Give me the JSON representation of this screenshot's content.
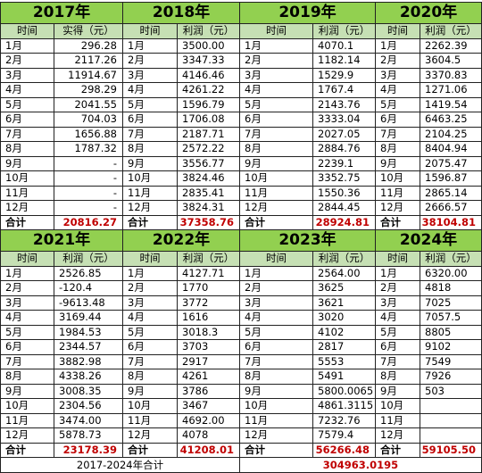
{
  "blocks": [
    {
      "year": "2017年",
      "headers": [
        "时间",
        "实得（元）"
      ],
      "months": [
        "1月",
        "2月",
        "3月",
        "4月",
        "5月",
        "6月",
        "7月",
        "8月",
        "9月",
        "10月",
        "11月",
        "12月"
      ],
      "values": [
        "296.28",
        "2117.26",
        "11914.67",
        "298.29",
        "2041.55",
        "704.03",
        "1656.88",
        "1787.32",
        "-",
        "-",
        "-",
        "-"
      ],
      "total_label": "合计",
      "total": "20816.27"
    },
    {
      "year": "2018年",
      "headers": [
        "时间",
        "利润（元）"
      ],
      "months": [
        "1月",
        "2月",
        "3月",
        "4月",
        "5月",
        "6月",
        "7月",
        "8月",
        "9月",
        "10月",
        "11月",
        "12月"
      ],
      "values": [
        "3500.00",
        "3347.33",
        "4146.46",
        "4261.22",
        "1596.79",
        "1706.08",
        "2187.71",
        "2572.22",
        "3556.77",
        "3824.46",
        "2835.41",
        "3824.31"
      ],
      "total_label": "合计",
      "total": "37358.76"
    },
    {
      "year": "2019年",
      "headers": [
        "时间",
        "利润（元）"
      ],
      "months": [
        "1月",
        "2月",
        "3月",
        "4月",
        "5月",
        "6月",
        "7月",
        "8月",
        "9月",
        "10月",
        "11月",
        "12月"
      ],
      "values": [
        "4070.1",
        "1182.14",
        "1529.9",
        "1767.4",
        "2143.76",
        "3333.04",
        "2027.05",
        "2884.76",
        "2239.1",
        "3352.75",
        "1550.36",
        "2844.45"
      ],
      "total_label": "合计",
      "total": "28924.81"
    },
    {
      "year": "2020年",
      "headers": [
        "时间",
        "利润（元）"
      ],
      "months": [
        "1月",
        "2月",
        "3月",
        "4月",
        "5月",
        "6月",
        "7月",
        "8月",
        "9月",
        "10月",
        "11月",
        "12月"
      ],
      "values": [
        "2262.39",
        "3604.5",
        "3370.83",
        "1271.06",
        "1419.54",
        "6463.25",
        "2104.25",
        "8404.94",
        "2075.47",
        "1596.87",
        "2865.14",
        "2666.57"
      ],
      "total_label": "合计",
      "total": "38104.81"
    },
    {
      "year": "2021年",
      "headers": [
        "时间",
        "利润（元）"
      ],
      "months": [
        "1月",
        "2月",
        "3月",
        "4月",
        "5月",
        "6月",
        "7月",
        "8月",
        "9月",
        "10月",
        "11月",
        "12月"
      ],
      "values": [
        "2526.85",
        "-120.4",
        "-9613.48",
        "3169.44",
        "1984.53",
        "2344.57",
        "3882.98",
        "4338.26",
        "3008.35",
        "2304.56",
        "3474.00",
        "5878.73"
      ],
      "total_label": "合计",
      "total": "23178.39"
    },
    {
      "year": "2022年",
      "headers": [
        "时间",
        "利润（元）"
      ],
      "months": [
        "1月",
        "2月",
        "3月",
        "4月",
        "5月",
        "6月",
        "7月",
        "8月",
        "9月",
        "10月",
        "11月",
        "12月"
      ],
      "values": [
        "4127.71",
        "1770",
        "3772",
        "1616",
        "3018.3",
        "3703",
        "2917",
        "4261",
        "3786",
        "3467",
        "4692.00",
        "4078"
      ],
      "total_label": "合计",
      "total": "41208.01"
    },
    {
      "year": "2023年",
      "headers": [
        "时间",
        "利润（元）"
      ],
      "months": [
        "1月",
        "2月",
        "3月",
        "4月",
        "5月",
        "6月",
        "7月",
        "8月",
        "9月",
        "10月",
        "11月",
        "12月"
      ],
      "values": [
        "2564.00",
        "3625",
        "3621",
        "3020",
        "4102",
        "2817",
        "5553",
        "5491",
        "5800.0065",
        "4861.3115",
        "7232.76",
        "7579.4"
      ],
      "total_label": "合计",
      "total": "56266.48"
    },
    {
      "year": "2024年",
      "headers": [
        "时间",
        "利润（元）"
      ],
      "months": [
        "1月",
        "2月",
        "3月",
        "4月",
        "5月",
        "6月",
        "7月",
        "8月",
        "9月",
        "10月",
        "11月",
        "12月"
      ],
      "values": [
        "6320.00",
        "4818",
        "7025",
        "7057.5",
        "8805",
        "9102",
        "7549",
        "7926",
        "503",
        null,
        null,
        null
      ],
      "total_label": "合计",
      "total": "59105.50"
    }
  ],
  "grand_total": {
    "label": "2017-2024年合计",
    "value": "304963.0195"
  }
}
